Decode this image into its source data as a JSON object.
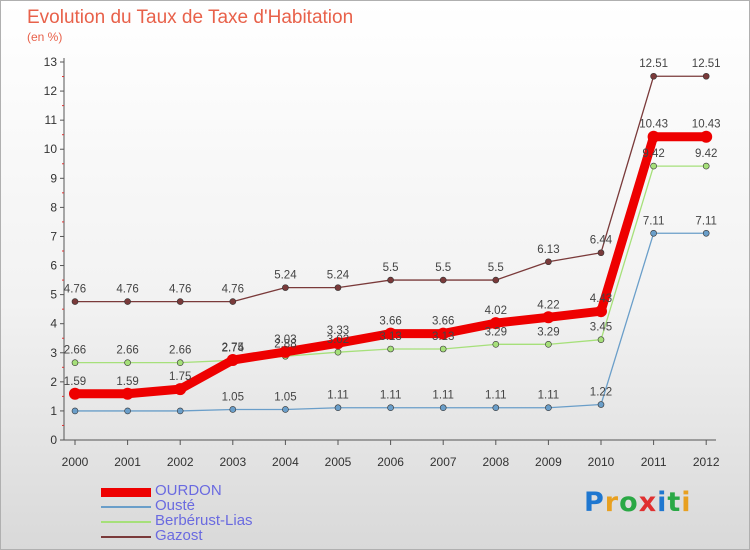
{
  "brand": {
    "text": "Proxiti",
    "colors": [
      "#1f77d0",
      "#e8a020",
      "#2aa845",
      "#e03030",
      "#1f77d0",
      "#2aa845",
      "#e8a020"
    ]
  },
  "chart_data": {
    "type": "line",
    "title": "Evolution du Taux de Taxe d'Habitation",
    "subtitle": "(en %)",
    "xlabel": "",
    "ylabel": "",
    "categories": [
      "2000",
      "2001",
      "2002",
      "2003",
      "2004",
      "2005",
      "2006",
      "2007",
      "2008",
      "2009",
      "2010",
      "2011",
      "2012"
    ],
    "ylim": [
      0,
      13
    ],
    "yticks": [
      0,
      1,
      2,
      3,
      4,
      5,
      6,
      7,
      8,
      9,
      10,
      11,
      12,
      13
    ],
    "grid": false,
    "legend_position": "bottom-left",
    "series": [
      {
        "name": "OURDON",
        "color": "#ee0000",
        "values": [
          1.59,
          1.59,
          1.75,
          2.75,
          3.03,
          3.33,
          3.66,
          3.66,
          4.02,
          4.22,
          4.43,
          10.43,
          10.43
        ],
        "labels": [
          "1.59",
          "1.59",
          "1.75",
          "2.75",
          "3.03",
          "3.33",
          "3.66",
          "3.66",
          "4.02",
          "4.22",
          "4.43",
          "10.43",
          "10.43"
        ]
      },
      {
        "name": "Ousté",
        "color": "#6a9ec9",
        "values": [
          1,
          1,
          1,
          1.05,
          1.05,
          1.11,
          1.11,
          1.11,
          1.11,
          1.11,
          1.22,
          7.11,
          7.11
        ],
        "labels": [
          "",
          "",
          "",
          "1.05",
          "1.05",
          "1.11",
          "1.11",
          "1.11",
          "1.11",
          "1.11",
          "1.22",
          "7.11",
          "7.11"
        ]
      },
      {
        "name": "Berbérust-Lias",
        "color": "#a6e07a",
        "values": [
          2.66,
          2.66,
          2.66,
          2.74,
          2.88,
          3.02,
          3.13,
          3.13,
          3.29,
          3.29,
          3.45,
          9.42,
          9.42
        ],
        "labels": [
          "2.66",
          "2.66",
          "2.66",
          "2.74",
          "2.88",
          "3.02",
          "3.13",
          "3.13",
          "3.29",
          "3.29",
          "3.45",
          "9.42",
          "9.42"
        ]
      },
      {
        "name": "Gazost",
        "color": "#7a3a3a",
        "values": [
          4.76,
          4.76,
          4.76,
          4.76,
          5.24,
          5.24,
          5.5,
          5.5,
          5.5,
          6.13,
          6.44,
          12.51,
          12.51
        ],
        "labels": [
          "4.76",
          "4.76",
          "4.76",
          "4.76",
          "5.24",
          "5.24",
          "5.5",
          "5.5",
          "5.5",
          "6.13",
          "6.44",
          "12.51",
          "12.51"
        ]
      }
    ]
  }
}
